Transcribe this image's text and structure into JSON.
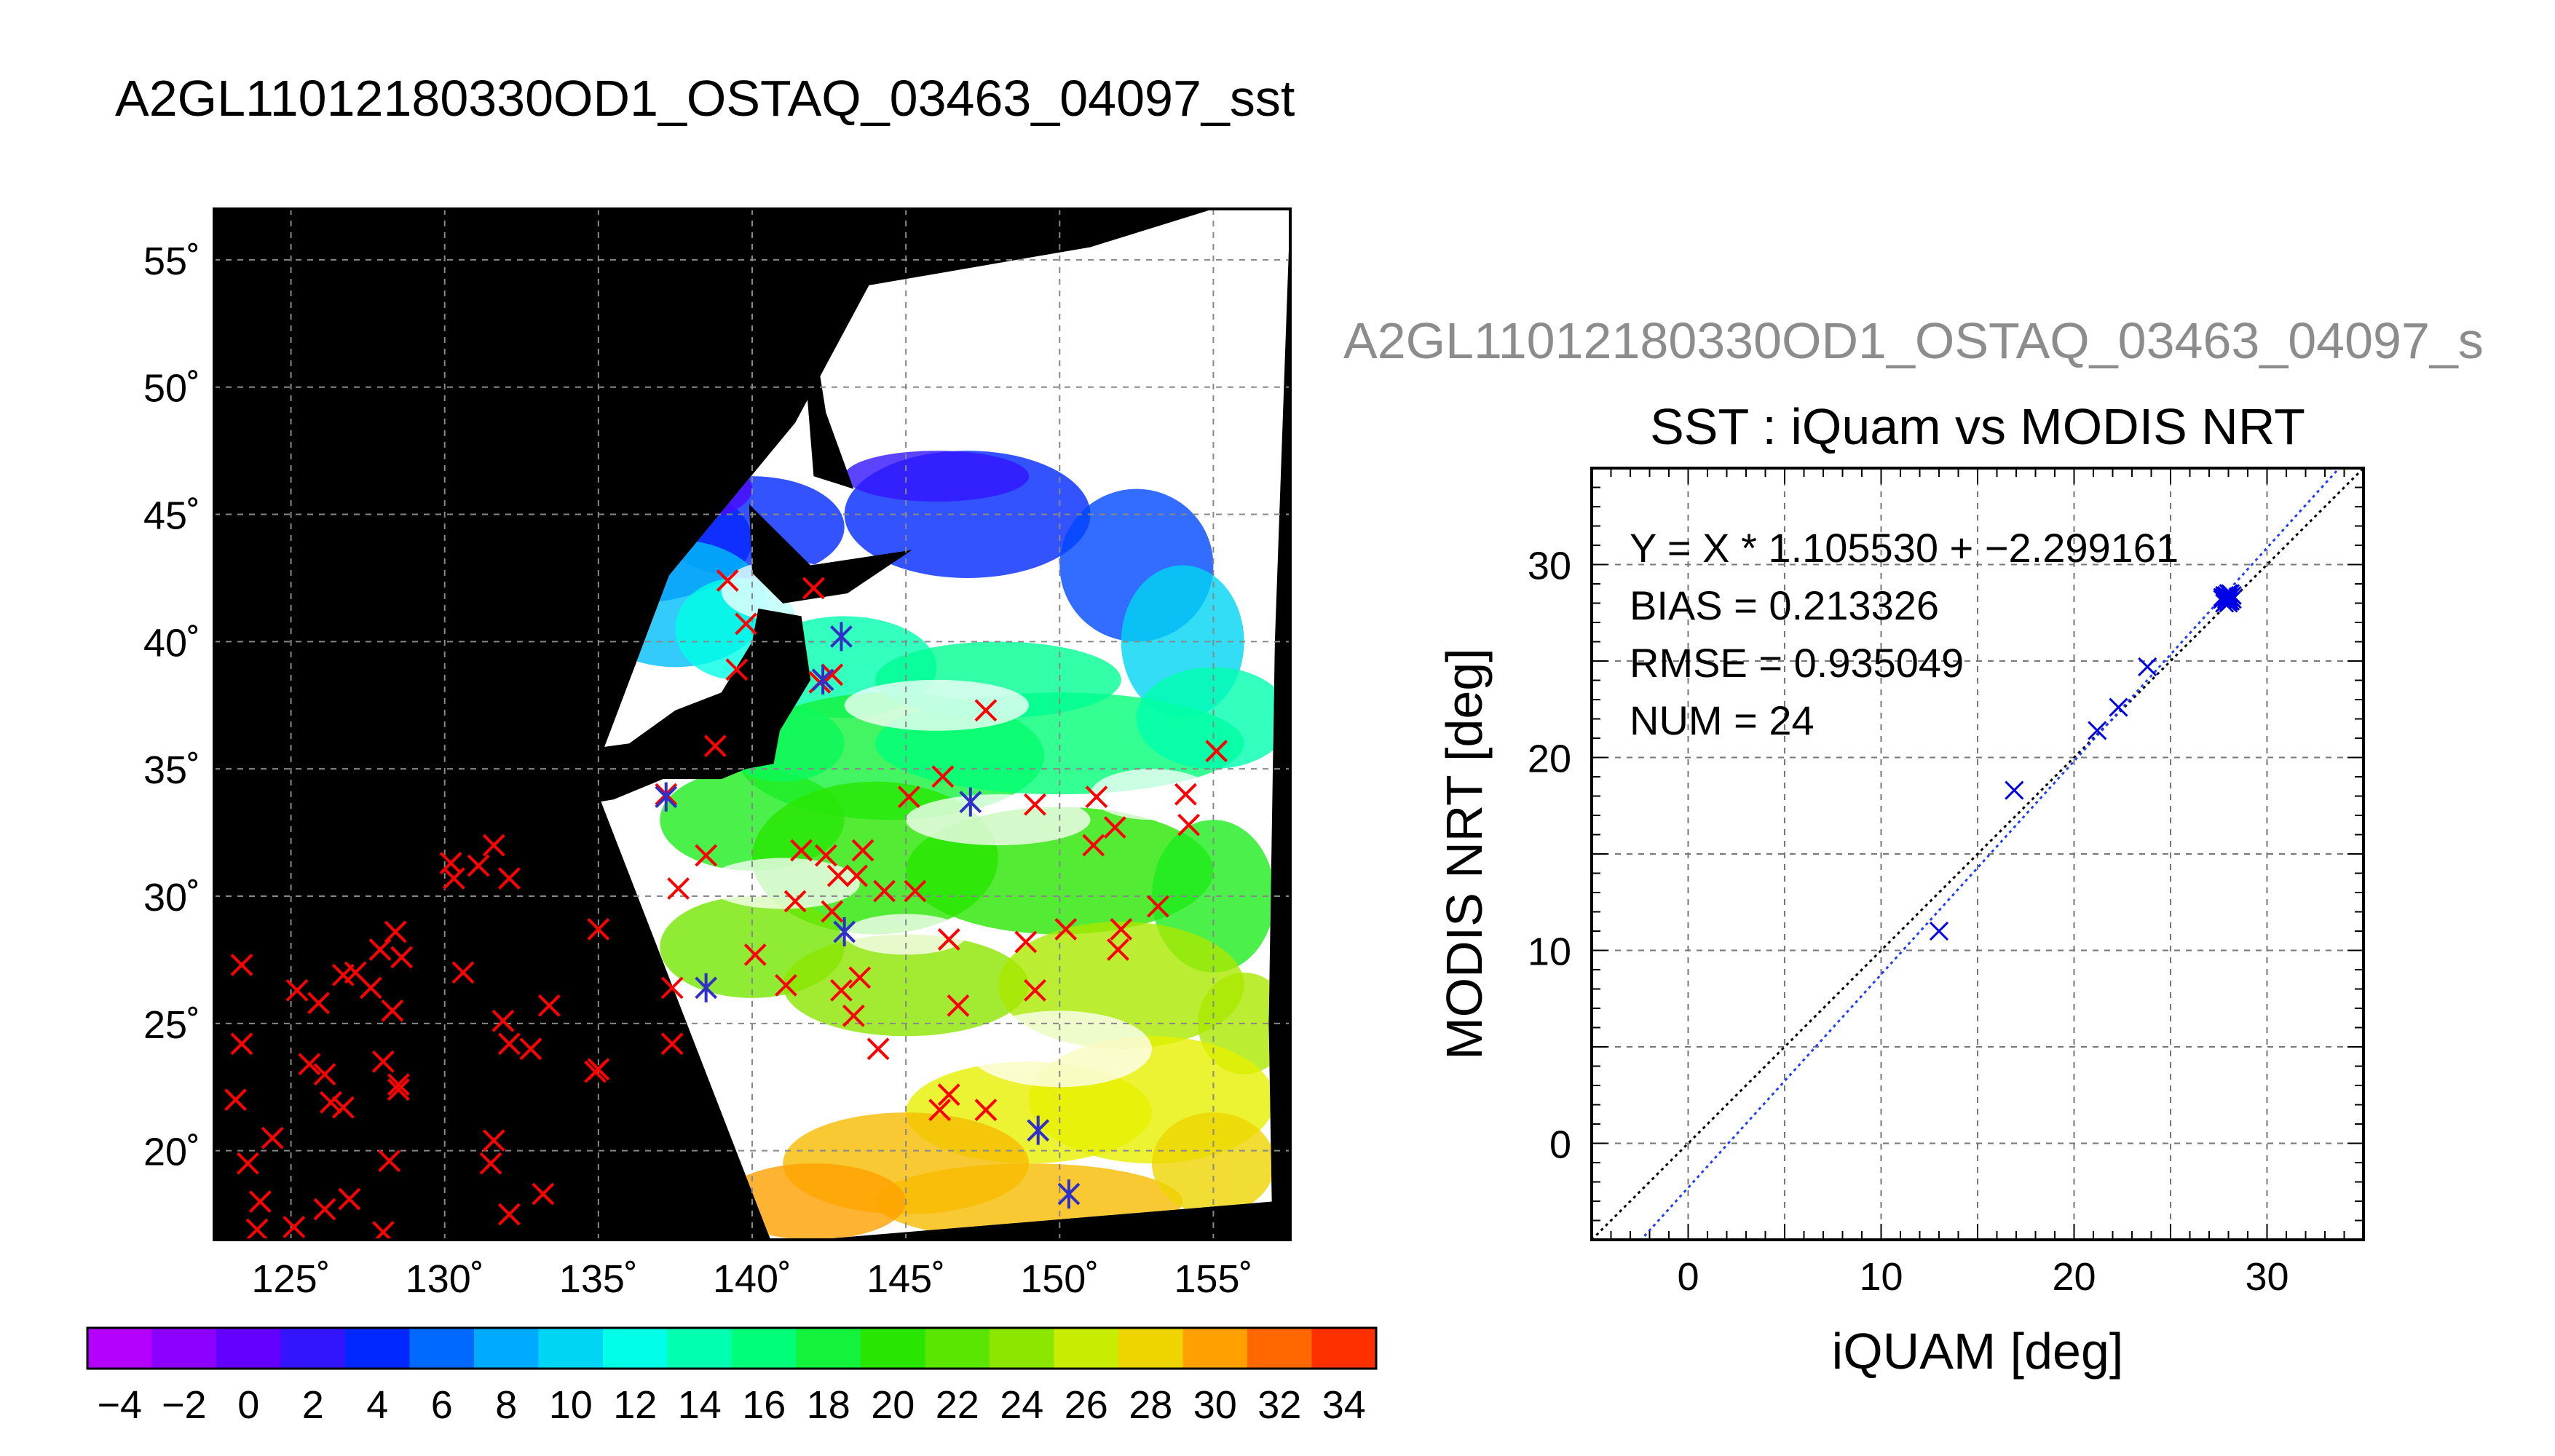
{
  "page": {
    "main_title": "A2GL11012180330OD1_OSTAQ_03463_04097_sst",
    "right_title": "A2GL11012180330OD1_OSTAQ_03463_04097_s"
  },
  "colors": {
    "land": "#000000",
    "cloud": "#ffffff",
    "buoy_marker": "#ff0000",
    "match_marker": "#3030c8",
    "scatter_marker": "#0000e6",
    "fit_line": "#1e3cff",
    "identity_line": "#000000"
  },
  "chart_data": [
    {
      "type": "heatmap",
      "subtype": "map",
      "lon_ticks": [
        125,
        130,
        135,
        140,
        145,
        150,
        155
      ],
      "lon_tick_labels": [
        "125˚",
        "130˚",
        "135˚",
        "140˚",
        "145˚",
        "150˚",
        "155˚"
      ],
      "lat_ticks": [
        20,
        25,
        30,
        35,
        40,
        45,
        50,
        55
      ],
      "lat_tick_labels": [
        "20˚",
        "25˚",
        "30˚",
        "35˚",
        "40˚",
        "45˚",
        "50˚",
        "55˚"
      ],
      "lon_range": [
        122.5,
        157.5
      ],
      "lat_range": [
        16.5,
        57
      ],
      "grid": true,
      "colorbar": {
        "min": -5,
        "max": 35,
        "step": 2,
        "tick_labels": [
          "−4",
          "−2",
          "0",
          "2",
          "4",
          "6",
          "8",
          "10",
          "12",
          "14",
          "16",
          "18",
          "20",
          "22",
          "24",
          "26",
          "28",
          "30",
          "32",
          "34"
        ],
        "tick_values": [
          -4,
          -2,
          0,
          2,
          4,
          6,
          8,
          10,
          12,
          14,
          16,
          18,
          20,
          22,
          24,
          26,
          28,
          30,
          32,
          34
        ]
      },
      "buoys_lon_lat": [
        [
          123.4,
          27.3
        ],
        [
          123.4,
          24.2
        ],
        [
          123.2,
          22.0
        ],
        [
          123.6,
          19.5
        ],
        [
          124.0,
          18.0
        ],
        [
          123.9,
          16.9
        ],
        [
          124.4,
          20.5
        ],
        [
          125.2,
          26.3
        ],
        [
          125.9,
          25.8
        ],
        [
          125.6,
          23.4
        ],
        [
          126.1,
          23.0
        ],
        [
          125.1,
          17.0
        ],
        [
          126.1,
          17.7
        ],
        [
          126.3,
          21.9
        ],
        [
          126.7,
          21.7
        ],
        [
          126.7,
          26.9
        ],
        [
          127.1,
          27.0
        ],
        [
          127.6,
          26.4
        ],
        [
          127.9,
          27.9
        ],
        [
          128.4,
          28.6
        ],
        [
          128.3,
          25.5
        ],
        [
          128.0,
          23.5
        ],
        [
          128.5,
          22.4
        ],
        [
          128.2,
          19.6
        ],
        [
          126.9,
          18.1
        ],
        [
          128.0,
          16.8
        ],
        [
          128.5,
          22.6
        ],
        [
          128.6,
          27.6
        ],
        [
          130.2,
          31.3
        ],
        [
          130.3,
          30.7
        ],
        [
          131.6,
          32.0
        ],
        [
          131.1,
          31.2
        ],
        [
          132.1,
          30.7
        ],
        [
          130.6,
          27.0
        ],
        [
          131.9,
          25.1
        ],
        [
          132.1,
          24.2
        ],
        [
          132.8,
          24.0
        ],
        [
          133.4,
          25.7
        ],
        [
          131.6,
          20.4
        ],
        [
          131.5,
          19.5
        ],
        [
          132.1,
          17.5
        ],
        [
          133.2,
          18.3
        ],
        [
          135.0,
          23.2
        ],
        [
          134.9,
          23.1
        ],
        [
          135.0,
          28.7
        ],
        [
          137.2,
          34.0
        ],
        [
          138.5,
          31.6
        ],
        [
          137.6,
          30.3
        ],
        [
          138.8,
          35.9
        ],
        [
          139.5,
          38.9
        ],
        [
          139.8,
          40.7
        ],
        [
          139.2,
          42.4
        ],
        [
          142.0,
          42.1
        ],
        [
          142.2,
          38.4
        ],
        [
          142.6,
          38.7
        ],
        [
          141.6,
          31.8
        ],
        [
          142.4,
          31.6
        ],
        [
          142.8,
          30.8
        ],
        [
          143.4,
          30.8
        ],
        [
          143.6,
          31.8
        ],
        [
          142.6,
          29.4
        ],
        [
          141.4,
          29.8
        ],
        [
          141.1,
          26.5
        ],
        [
          140.1,
          27.7
        ],
        [
          137.4,
          24.2
        ],
        [
          137.4,
          26.4
        ],
        [
          142.9,
          26.3
        ],
        [
          143.3,
          25.3
        ],
        [
          143.5,
          26.8
        ],
        [
          144.1,
          24.0
        ],
        [
          144.3,
          30.2
        ],
        [
          145.3,
          30.2
        ],
        [
          145.1,
          33.9
        ],
        [
          146.2,
          34.7
        ],
        [
          146.4,
          28.3
        ],
        [
          147.6,
          37.3
        ],
        [
          149.2,
          26.3
        ],
        [
          148.9,
          28.2
        ],
        [
          149.2,
          33.6
        ],
        [
          150.2,
          28.7
        ],
        [
          151.2,
          33.9
        ],
        [
          151.1,
          32.0
        ],
        [
          151.8,
          32.7
        ],
        [
          152.0,
          28.7
        ],
        [
          151.9,
          27.9
        ],
        [
          153.2,
          29.6
        ],
        [
          154.1,
          34.0
        ],
        [
          154.2,
          32.8
        ],
        [
          155.1,
          35.7
        ],
        [
          146.7,
          25.7
        ],
        [
          146.4,
          22.2
        ],
        [
          146.1,
          21.6
        ],
        [
          147.6,
          21.6
        ]
      ],
      "matchups_lon_lat": [
        [
          137.2,
          33.9
        ],
        [
          138.5,
          26.4
        ],
        [
          142.9,
          40.2
        ],
        [
          142.3,
          38.5
        ],
        [
          147.1,
          33.7
        ],
        [
          143.0,
          28.6
        ],
        [
          149.3,
          20.8
        ],
        [
          150.3,
          18.3
        ]
      ]
    },
    {
      "type": "scatter",
      "title": "SST : iQuam vs MODIS NRT",
      "xlabel": "iQUAM [deg]",
      "ylabel": "MODIS NRT [deg]",
      "xlim": [
        -5,
        35
      ],
      "ylim": [
        -5,
        35
      ],
      "x_ticks": [
        0,
        10,
        20,
        30
      ],
      "y_ticks": [
        0,
        10,
        20,
        30
      ],
      "grid": true,
      "annotations": [
        "Y = X * 1.105530 + −2.299161",
        "BIAS = 0.213326",
        "RMSE = 0.935049",
        "NUM = 24"
      ],
      "fit": {
        "slope": 1.10553,
        "intercept": -2.299161
      },
      "points": [
        [
          13.0,
          11.0
        ],
        [
          16.9,
          18.3
        ],
        [
          21.2,
          21.4
        ],
        [
          22.3,
          22.6
        ],
        [
          23.8,
          24.7
        ],
        [
          27.7,
          28.2
        ],
        [
          27.8,
          28.4
        ],
        [
          27.9,
          28.1
        ],
        [
          28.0,
          28.3
        ],
        [
          28.1,
          28.5
        ],
        [
          27.8,
          28.0
        ],
        [
          28.2,
          28.2
        ],
        [
          27.9,
          28.4
        ],
        [
          28.0,
          28.1
        ],
        [
          28.1,
          28.3
        ],
        [
          27.7,
          28.3
        ],
        [
          28.0,
          28.5
        ],
        [
          27.9,
          28.2
        ],
        [
          28.2,
          28.4
        ],
        [
          28.0,
          28.0
        ],
        [
          28.1,
          28.1
        ],
        [
          27.8,
          28.3
        ],
        [
          28.0,
          28.2
        ],
        [
          27.9,
          28.3
        ]
      ]
    }
  ]
}
